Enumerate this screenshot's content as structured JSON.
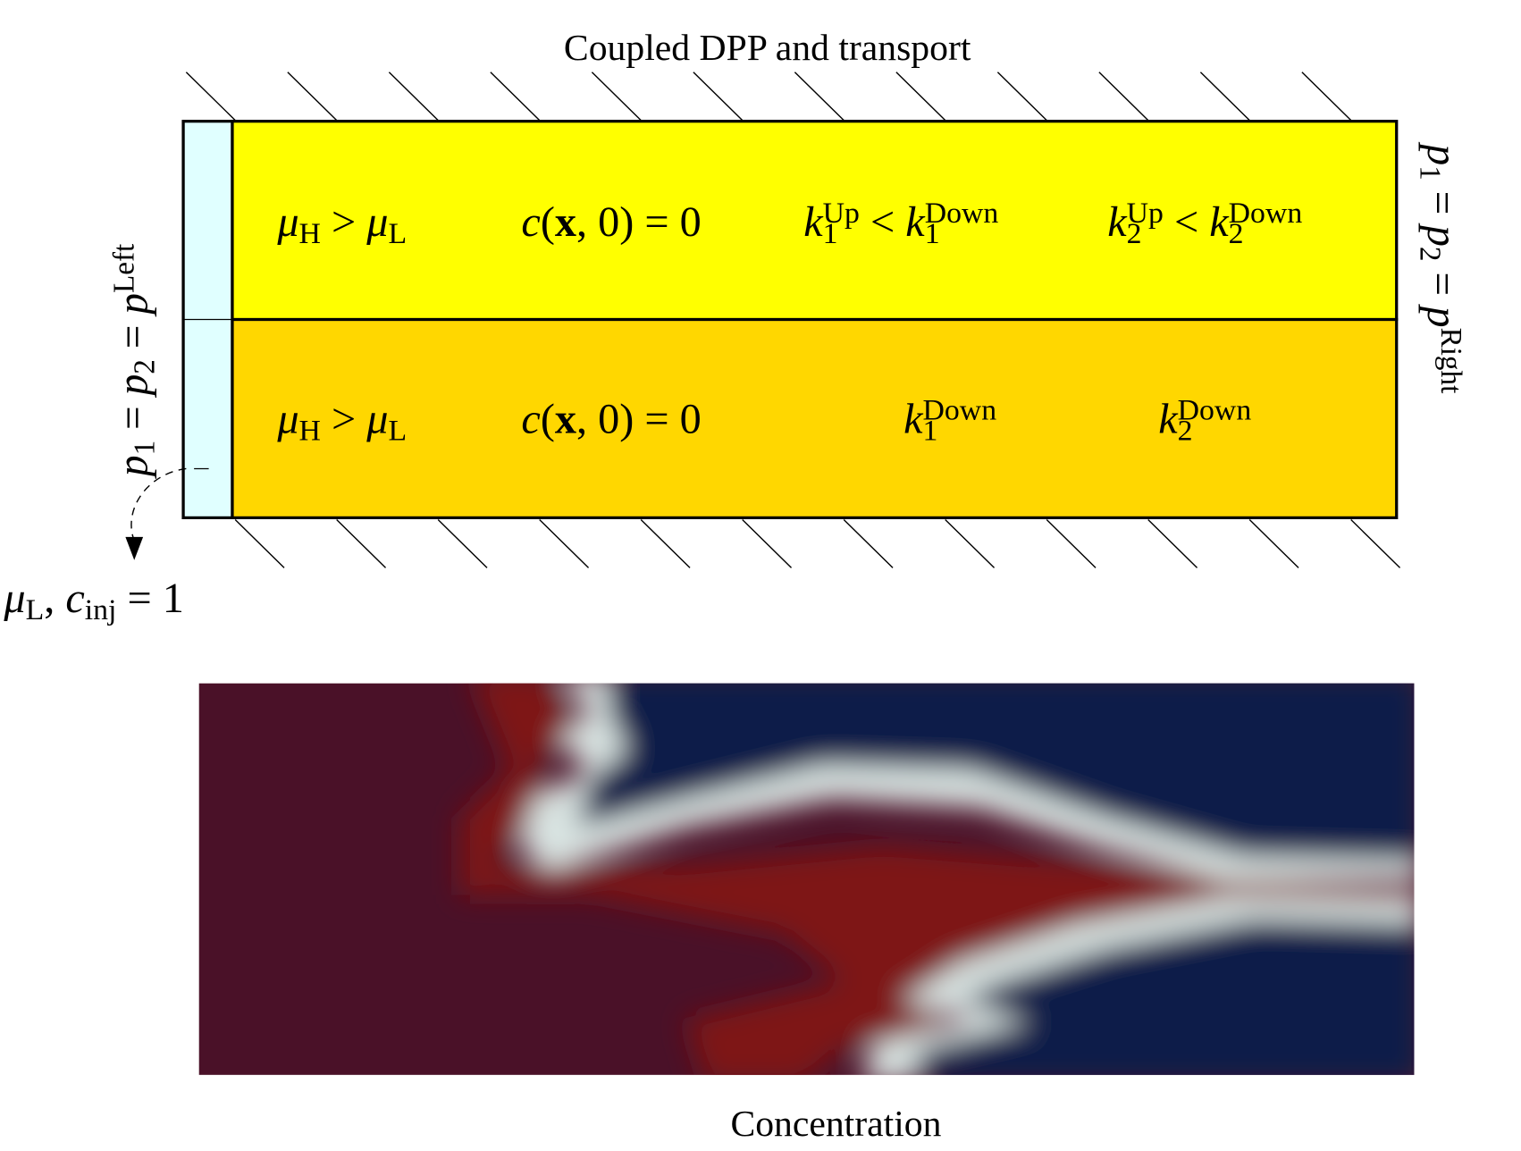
{
  "title": "Coupled DPP and transport",
  "upper_layer": {
    "labels": [
      [
        {
          "i": "μ"
        },
        {
          "sub": "H"
        },
        {
          "text": " > "
        },
        {
          "i": "μ"
        },
        {
          "sub": "L"
        }
      ],
      [
        {
          "i": "c"
        },
        {
          "text": "("
        },
        {
          "bold": "x"
        },
        {
          "text": ", 0) = 0"
        }
      ],
      [
        {
          "i": "k"
        },
        {
          "sub": "1",
          "sup": "Up"
        },
        {
          "text": " < "
        },
        {
          "i": "k"
        },
        {
          "sub": "1",
          "sup": "Down"
        }
      ],
      [
        {
          "i": "k"
        },
        {
          "sub": "2",
          "sup": "Up"
        },
        {
          "text": " < "
        },
        {
          "i": "k"
        },
        {
          "sub": "2",
          "sup": "Down"
        }
      ]
    ]
  },
  "lower_layer": {
    "labels": [
      [
        {
          "i": "μ"
        },
        {
          "sub": "H"
        },
        {
          "text": " > "
        },
        {
          "i": "μ"
        },
        {
          "sub": "L"
        }
      ],
      [
        {
          "i": "c"
        },
        {
          "text": "("
        },
        {
          "bold": "x"
        },
        {
          "text": ", 0) = 0"
        }
      ],
      [
        {
          "i": "k"
        },
        {
          "sub": "1",
          "sup": "Down"
        }
      ],
      [
        {
          "i": "k"
        },
        {
          "sub": "2",
          "sup": "Down"
        }
      ]
    ]
  },
  "left_boundary": [
    {
      "i": "p"
    },
    {
      "sub": "1"
    },
    {
      "text": " = "
    },
    {
      "i": "p"
    },
    {
      "sub": "2"
    },
    {
      "text": " = "
    },
    {
      "i": "p"
    },
    {
      "sup": "Left"
    }
  ],
  "right_boundary": [
    {
      "i": "p"
    },
    {
      "sub": "1"
    },
    {
      "text": " = "
    },
    {
      "i": "p"
    },
    {
      "sub": "2"
    },
    {
      "text": " = "
    },
    {
      "i": "p"
    },
    {
      "sup": "Right"
    }
  ],
  "injection": [
    {
      "i": "μ"
    },
    {
      "sub": "L"
    },
    {
      "text": ", "
    },
    {
      "i": "c"
    },
    {
      "sub": "inj"
    },
    {
      "text": " = 1"
    }
  ],
  "caption": "Concentration"
}
